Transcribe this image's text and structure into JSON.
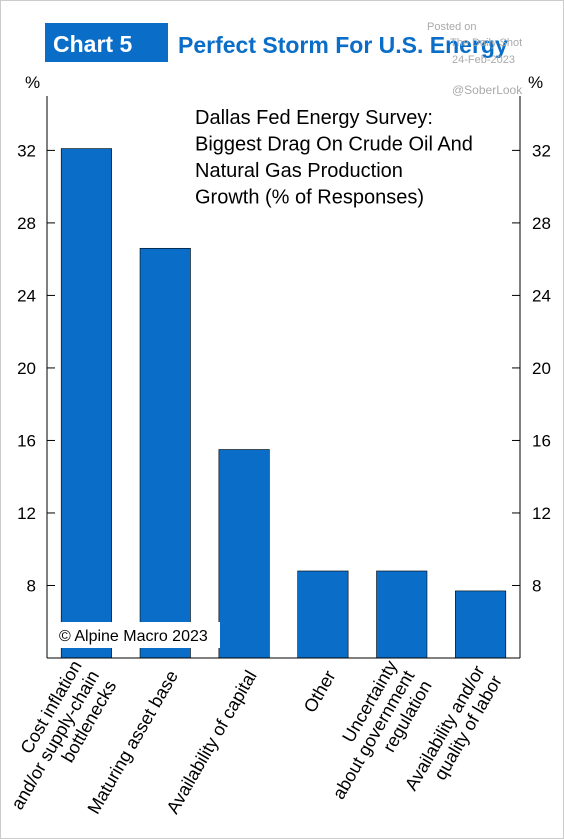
{
  "chart_data": {
    "type": "bar",
    "chart_label": "Chart 5",
    "title": "Perfect Storm For U.S. Energy",
    "annotation": [
      "Dallas Fed Energy Survey:",
      "Biggest Drag On Crude Oil And",
      "Natural Gas Production",
      "Growth (% of Responses)"
    ],
    "copyright": "© Alpine Macro 2023",
    "watermark": [
      "Posted on",
      "The Daily Shot",
      "24-Feb-2023",
      "@SoberLook"
    ],
    "y_unit": "%",
    "categories": [
      [
        "Cost inflation",
        "and/or supply-chain",
        "bottlenecks"
      ],
      [
        "Maturing asset base"
      ],
      [
        "Availability of capital"
      ],
      [
        "Other"
      ],
      [
        "Uncertainty",
        "about government",
        "regulation"
      ],
      [
        "Availability and/or",
        "quality of labor"
      ]
    ],
    "values": [
      32.1,
      26.6,
      15.5,
      8.8,
      8.8,
      7.7
    ],
    "color": "#0a6ec8",
    "ylim": [
      4,
      35
    ],
    "yticks": [
      8,
      12,
      16,
      20,
      24,
      28,
      32
    ]
  }
}
